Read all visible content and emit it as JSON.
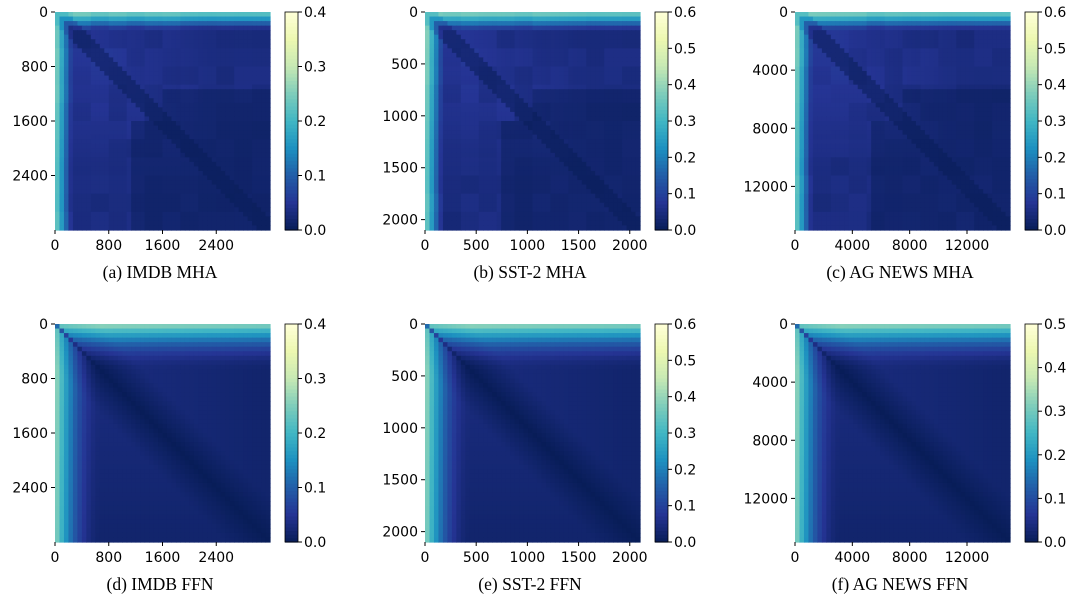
{
  "chart_data": [
    {
      "type": "heatmap",
      "caption": "(a) IMDB MHA",
      "pattern": "mha",
      "size": 3200,
      "xticks": [
        0,
        800,
        1600,
        2400
      ],
      "yticks": [
        0,
        800,
        1600,
        2400
      ],
      "xticklabels": [
        "0",
        "800",
        "1600",
        "2400"
      ],
      "yticklabels": [
        "0",
        "800",
        "1600",
        "2400"
      ],
      "colorbar": {
        "min": 0.0,
        "max": 0.4,
        "ticks": [
          0.0,
          0.1,
          0.2,
          0.3,
          0.4
        ],
        "ticklabels": [
          "0.0",
          "0.1",
          "0.2",
          "0.3",
          "0.4"
        ]
      },
      "colormap": "YlGnBu"
    },
    {
      "type": "heatmap",
      "caption": "(b) SST-2 MHA",
      "pattern": "mha",
      "size": 2100,
      "xticks": [
        0,
        500,
        1000,
        1500,
        2000
      ],
      "yticks": [
        0,
        500,
        1000,
        1500,
        2000
      ],
      "xticklabels": [
        "0",
        "500",
        "1000",
        "1500",
        "2000"
      ],
      "yticklabels": [
        "0",
        "500",
        "1000",
        "1500",
        "2000"
      ],
      "colorbar": {
        "min": 0.0,
        "max": 0.6,
        "ticks": [
          0.0,
          0.1,
          0.2,
          0.3,
          0.4,
          0.5,
          0.6
        ],
        "ticklabels": [
          "0.0",
          "0.1",
          "0.2",
          "0.3",
          "0.4",
          "0.5",
          "0.6"
        ]
      },
      "colormap": "YlGnBu"
    },
    {
      "type": "heatmap",
      "caption": "(c) AG NEWS MHA",
      "pattern": "mha",
      "size": 15000,
      "xticks": [
        0,
        4000,
        8000,
        12000
      ],
      "yticks": [
        0,
        4000,
        8000,
        12000
      ],
      "xticklabels": [
        "0",
        "4000",
        "8000",
        "12000"
      ],
      "yticklabels": [
        "0",
        "4000",
        "8000",
        "12000"
      ],
      "colorbar": {
        "min": 0.0,
        "max": 0.6,
        "ticks": [
          0.0,
          0.1,
          0.2,
          0.3,
          0.4,
          0.5,
          0.6
        ],
        "ticklabels": [
          "0.0",
          "0.1",
          "0.2",
          "0.3",
          "0.4",
          "0.5",
          "0.6"
        ]
      },
      "colormap": "YlGnBu"
    },
    {
      "type": "heatmap",
      "caption": "(d) IMDB FFN",
      "pattern": "ffn",
      "size": 3200,
      "xticks": [
        0,
        800,
        1600,
        2400
      ],
      "yticks": [
        0,
        800,
        1600,
        2400
      ],
      "xticklabels": [
        "0",
        "800",
        "1600",
        "2400"
      ],
      "yticklabels": [
        "0",
        "800",
        "1600",
        "2400"
      ],
      "colorbar": {
        "min": 0.0,
        "max": 0.4,
        "ticks": [
          0.0,
          0.1,
          0.2,
          0.3,
          0.4
        ],
        "ticklabels": [
          "0.0",
          "0.1",
          "0.2",
          "0.3",
          "0.4"
        ]
      },
      "colormap": "YlGnBu"
    },
    {
      "type": "heatmap",
      "caption": "(e) SST-2 FFN",
      "pattern": "ffn",
      "size": 2100,
      "xticks": [
        0,
        500,
        1000,
        1500,
        2000
      ],
      "yticks": [
        0,
        500,
        1000,
        1500,
        2000
      ],
      "xticklabels": [
        "0",
        "500",
        "1000",
        "1500",
        "2000"
      ],
      "yticklabels": [
        "0",
        "500",
        "1000",
        "1500",
        "2000"
      ],
      "colorbar": {
        "min": 0.0,
        "max": 0.6,
        "ticks": [
          0.0,
          0.1,
          0.2,
          0.3,
          0.4,
          0.5,
          0.6
        ],
        "ticklabels": [
          "0.0",
          "0.1",
          "0.2",
          "0.3",
          "0.4",
          "0.5",
          "0.6"
        ]
      },
      "colormap": "YlGnBu"
    },
    {
      "type": "heatmap",
      "caption": "(f) AG NEWS FFN",
      "pattern": "ffn",
      "size": 15000,
      "xticks": [
        0,
        4000,
        8000,
        12000
      ],
      "yticks": [
        0,
        4000,
        8000,
        12000
      ],
      "xticklabels": [
        "0",
        "4000",
        "8000",
        "12000"
      ],
      "yticklabels": [
        "0",
        "4000",
        "8000",
        "12000"
      ],
      "colorbar": {
        "min": 0.0,
        "max": 0.5,
        "ticks": [
          0.0,
          0.1,
          0.2,
          0.3,
          0.4,
          0.5
        ],
        "ticklabels": [
          "0.0",
          "0.1",
          "0.2",
          "0.3",
          "0.4",
          "0.5"
        ]
      },
      "colormap": "YlGnBu"
    }
  ]
}
